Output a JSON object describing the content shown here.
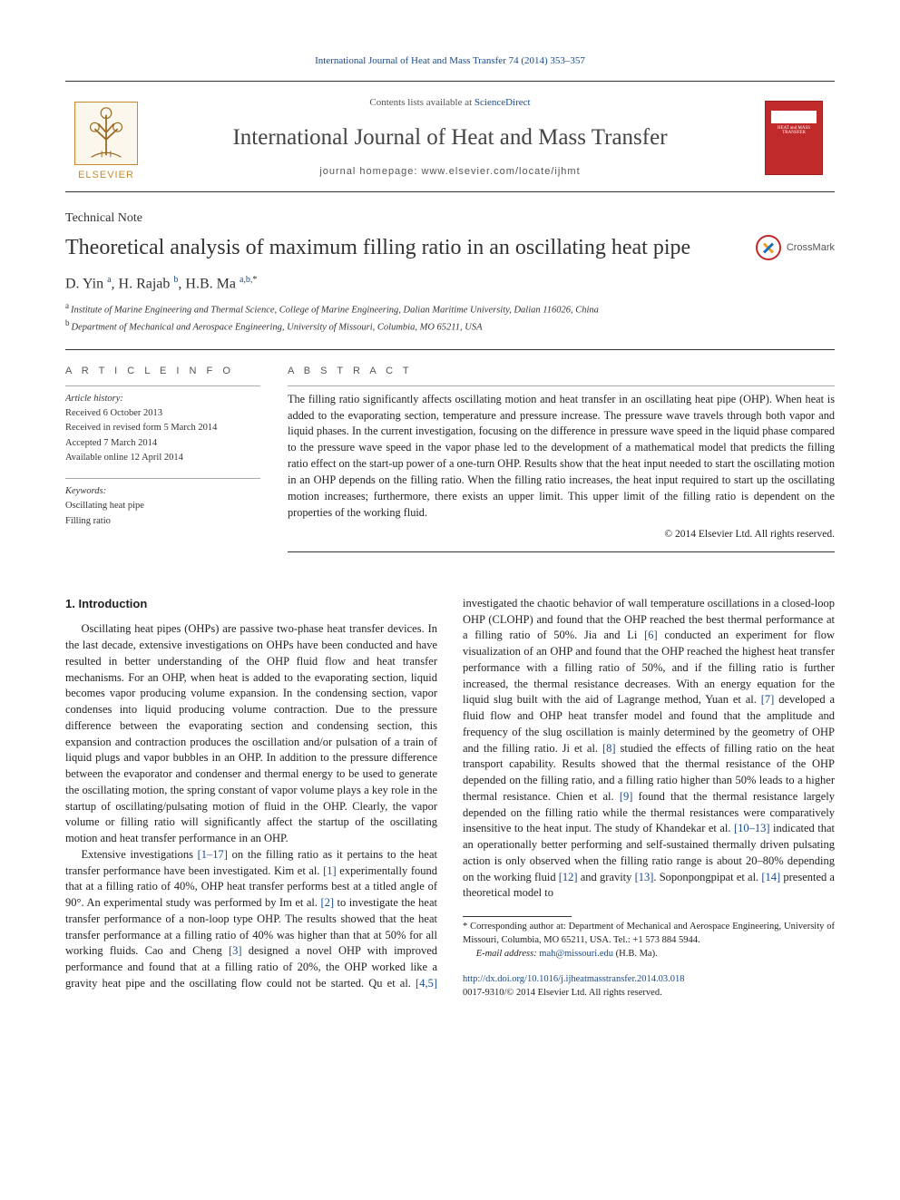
{
  "colors": {
    "link": "#1a4a8a",
    "text": "#222",
    "elsevier_orange": "#c78a2e",
    "cover_red": "#c12a2a",
    "rule": "#333333"
  },
  "typography": {
    "body_family": "Georgia, 'Times New Roman', serif",
    "sans_family": "Arial, sans-serif",
    "title_size_pt": 24,
    "journal_size_pt": 25,
    "body_size_pt": 12.5,
    "abstract_size_pt": 12.3,
    "small_size_pt": 10.5
  },
  "header": {
    "citation": "International Journal of Heat and Mass Transfer 74 (2014) 353–357",
    "contents_prefix": "Contents lists available at ",
    "contents_link_text": "ScienceDirect",
    "journal_name": "International Journal of Heat and Mass Transfer",
    "homepage_prefix": "journal homepage: ",
    "homepage_text": "www.elsevier.com/locate/ijhmt",
    "publisher_name": "ELSEVIER",
    "cover_label_1": "HEAT and MASS",
    "cover_label_2": "TRANSFER"
  },
  "article": {
    "type": "Technical Note",
    "title": "Theoretical analysis of maximum filling ratio in an oscillating heat pipe",
    "authors_html": "D. Yin",
    "authors": [
      {
        "name": "D. Yin",
        "aff": "a"
      },
      {
        "name": "H. Rajab",
        "aff": "b"
      },
      {
        "name": "H.B. Ma",
        "aff": "a,b,",
        "corr": true
      }
    ],
    "affiliations": [
      {
        "label": "a",
        "text": "Institute of Marine Engineering and Thermal Science, College of Marine Engineering, Dalian Maritime University, Dalian 116026, China"
      },
      {
        "label": "b",
        "text": "Department of Mechanical and Aerospace Engineering, University of Missouri, Columbia, MO 65211, USA"
      }
    ],
    "crossmark_label": "CrossMark"
  },
  "info": {
    "section_head": "A R T I C L E   I N F O",
    "history_label": "Article history:",
    "history": [
      "Received 6 October 2013",
      "Received in revised form 5 March 2014",
      "Accepted 7 March 2014",
      "Available online 12 April 2014"
    ],
    "keywords_label": "Keywords:",
    "keywords": [
      "Oscillating heat pipe",
      "Filling ratio"
    ]
  },
  "abstract": {
    "section_head": "A B S T R A C T",
    "text": "The filling ratio significantly affects oscillating motion and heat transfer in an oscillating heat pipe (OHP). When heat is added to the evaporating section, temperature and pressure increase. The pressure wave travels through both vapor and liquid phases. In the current investigation, focusing on the difference in pressure wave speed in the liquid phase compared to the pressure wave speed in the vapor phase led to the development of a mathematical model that predicts the filling ratio effect on the start-up power of a one-turn OHP. Results show that the heat input needed to start the oscillating motion in an OHP depends on the filling ratio. When the filling ratio increases, the heat input required to start up the oscillating motion increases; furthermore, there exists an upper limit. This upper limit of the filling ratio is dependent on the properties of the working fluid.",
    "copyright": "© 2014 Elsevier Ltd. All rights reserved."
  },
  "body": {
    "section_number": "1.",
    "section_title": "Introduction",
    "p1": "Oscillating heat pipes (OHPs) are passive two-phase heat transfer devices. In the last decade, extensive investigations on OHPs have been conducted and have resulted in better understanding of the OHP fluid flow and heat transfer mechanisms. For an OHP, when heat is added to the evaporating section, liquid becomes vapor producing volume expansion. In the condensing section, vapor condenses into liquid producing volume contraction. Due to the pressure difference between the evaporating section and condensing section, this expansion and contraction produces the oscillation and/or pulsation of a train of liquid plugs and vapor bubbles in an OHP. In addition to the pressure difference between the evaporator and condenser and thermal energy to be used to generate the oscillating motion, the spring constant of vapor volume plays a key role in the startup of oscillating/pulsating motion of fluid in the OHP. Clearly, the vapor volume or filling ratio will significantly affect the startup of the oscillating motion and heat transfer performance in an OHP.",
    "p2_pre": "Extensive investigations ",
    "p2_ref1": "[1–17]",
    "p2_mid1": " on the filling ratio as it pertains to the heat transfer performance have been investigated. Kim et al. ",
    "p2_ref2": "[1]",
    "p2_mid2": " experimentally found that at a filling ratio of 40%, OHP heat transfer performs best at a titled angle of 90°. An experimental study was performed by Im et al. ",
    "p2_ref3": "[2]",
    "p2_mid3": " to investigate the heat ",
    "p3_a": "transfer performance of a non-loop type OHP. The results showed that the heat transfer performance at a filling ratio of 40% was higher than that at 50% for all working fluids. Cao and Cheng ",
    "p3_ref1": "[3]",
    "p3_b": " designed a novel OHP with improved performance and found that at a filling ratio of 20%, the OHP worked like a gravity heat pipe and the oscillating flow could not be started. Qu et al. ",
    "p3_ref2": "[4,5]",
    "p3_c": " investigated the chaotic behavior of wall temperature oscillations in a closed-loop OHP (CLOHP) and found that the OHP reached the best thermal performance at a filling ratio of 50%. Jia and Li ",
    "p3_ref3": "[6]",
    "p3_d": " conducted an experiment for flow visualization of an OHP and found that the OHP reached the highest heat transfer performance with a filling ratio of 50%, and if the filling ratio is further increased, the thermal resistance decreases. With an energy equation for the liquid slug built with the aid of Lagrange method, Yuan et al. ",
    "p3_ref4": "[7]",
    "p3_e": " developed a fluid flow and OHP heat transfer model and found that the amplitude and frequency of the slug oscillation is mainly determined by the geometry of OHP and the filling ratio. Ji et al. ",
    "p3_ref5": "[8]",
    "p3_f": " studied the effects of filling ratio on the heat transport capability. Results showed that the thermal resistance of the OHP depended on the filling ratio, and a filling ratio higher than 50% leads to a higher thermal resistance. Chien et al. ",
    "p3_ref6": "[9]",
    "p3_g": " found that the thermal resistance largely depended on the filling ratio while the thermal resistances were comparatively insensitive to the heat input. The study of Khandekar et al. ",
    "p3_ref7": "[10–13]",
    "p3_h": " indicated that an operationally better performing and self-sustained thermally driven pulsating action is only observed when the filling ratio range is about 20–80% depending on the working fluid ",
    "p3_ref8": "[12]",
    "p3_i": " and gravity ",
    "p3_ref9": "[13]",
    "p3_j": ". Soponpongpipat et al. ",
    "p3_ref10": "[14]",
    "p3_k": " presented a theoretical model to"
  },
  "footnotes": {
    "corr_marker": "*",
    "corr_text": "Corresponding author at: Department of Mechanical and Aerospace Engineering, University of Missouri, Columbia, MO 65211, USA. Tel.: +1 573 884 5944.",
    "email_label": "E-mail address:",
    "email": "mah@missouri.edu",
    "email_paren": "(H.B. Ma)."
  },
  "footer": {
    "doi": "http://dx.doi.org/10.1016/j.ijheatmasstransfer.2014.03.018",
    "issn_line": "0017-9310/© 2014 Elsevier Ltd. All rights reserved."
  }
}
